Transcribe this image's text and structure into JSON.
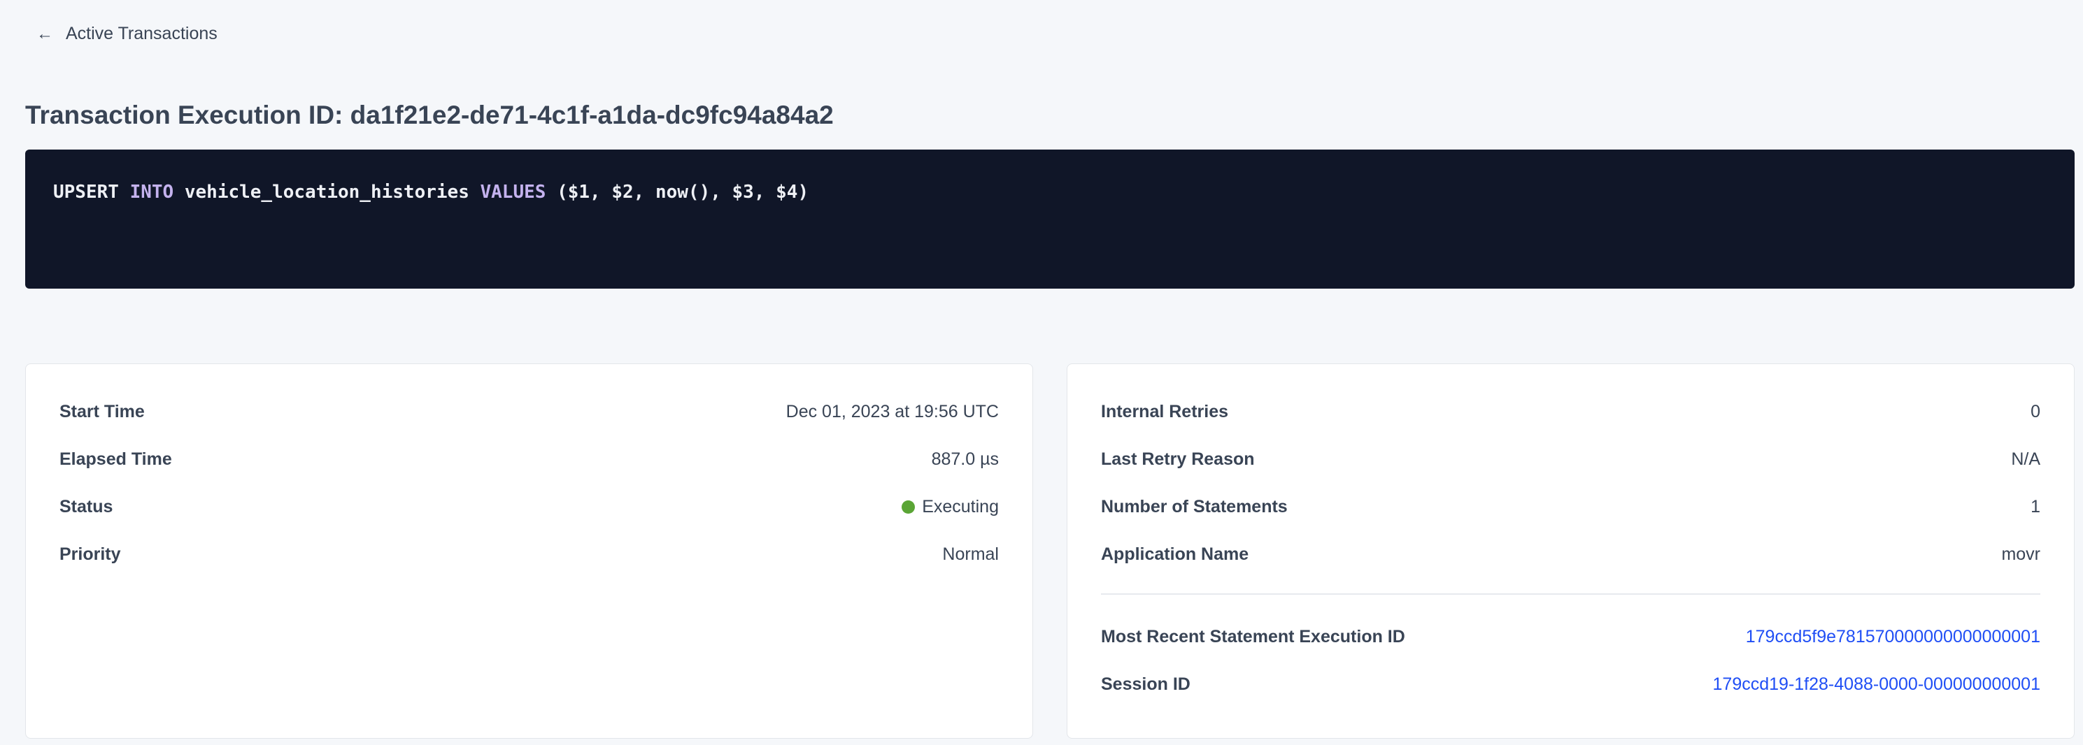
{
  "back_link": {
    "label": "Active Transactions",
    "icon": "arrow-left-icon"
  },
  "page_title": "Transaction Execution ID: da1f21e2-de71-4c1f-a1da-dc9fc94a84a2",
  "sql": {
    "tokens": [
      {
        "text": "UPSERT ",
        "kind": "plain"
      },
      {
        "text": "INTO",
        "kind": "keyword"
      },
      {
        "text": " vehicle_location_histories ",
        "kind": "plain"
      },
      {
        "text": "VALUES",
        "kind": "keyword"
      },
      {
        "text": " ($1, $2, now(), $3, $4)",
        "kind": "plain"
      }
    ]
  },
  "left_card": {
    "rows": [
      {
        "label": "Start Time",
        "value": "Dec 01, 2023 at 19:56 UTC"
      },
      {
        "label": "Elapsed Time",
        "value": "887.0 µs"
      },
      {
        "label": "Status",
        "value": "Executing",
        "status_color": "#5aa535"
      },
      {
        "label": "Priority",
        "value": "Normal"
      }
    ]
  },
  "right_card": {
    "rows": [
      {
        "label": "Internal Retries",
        "value": "0"
      },
      {
        "label": "Last Retry Reason",
        "value": "N/A"
      },
      {
        "label": "Number of Statements",
        "value": "1"
      },
      {
        "label": "Application Name",
        "value": "movr"
      }
    ],
    "links": [
      {
        "label": "Most Recent Statement Execution ID",
        "value": "179ccd5f9e781570000000000000001"
      },
      {
        "label": "Session ID",
        "value": "179ccd19-1f28-4088-0000-000000000001"
      }
    ]
  },
  "colors": {
    "link": "#1f4ef5",
    "code_bg": "#101628",
    "keyword": "#c4b2ee"
  }
}
